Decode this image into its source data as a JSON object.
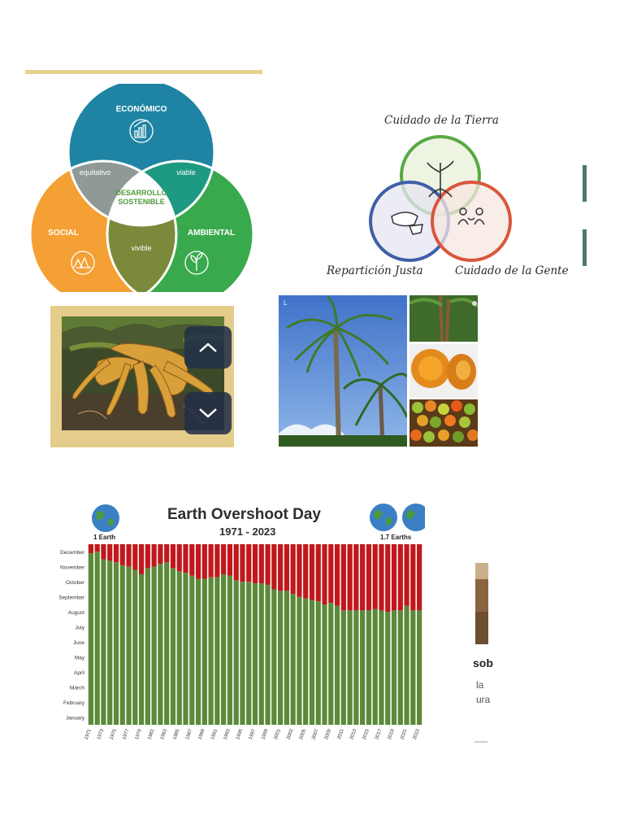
{
  "venn_sustainable": {
    "economico": "ECONÓMICO",
    "social": "SOCIAL",
    "ambiental": "AMBIENTAL",
    "equitativo": "equitativo",
    "viable": "viable",
    "vivible": "vivible",
    "center_line1": "DESARROLLO",
    "center_line2": "SOSTENIBLE",
    "colors": {
      "economic": "#1f84a3",
      "social": "#f5a034",
      "environment": "#39a94d"
    }
  },
  "venn_permaculture": {
    "top": "Cuidado de la Tierra",
    "left": "Repartición Justa",
    "right": "Cuidado de la Gente"
  },
  "gallery": {
    "up_icon": "chevron-up-icon",
    "down_icon": "chevron-down-icon",
    "palm_corner": "L"
  },
  "chart": {
    "left_globe_label": "1 Earth",
    "right_globe_label": "1.7 Earths"
  },
  "chart_data": {
    "type": "bar",
    "title": "Earth Overshoot Day",
    "subtitle": "1971 - 2023",
    "y_ticks": [
      "January",
      "February",
      "March",
      "April",
      "May",
      "June",
      "July",
      "August",
      "September",
      "October",
      "November",
      "December"
    ],
    "x_tick_labels": [
      "1971",
      "1973",
      "1975",
      "1977",
      "1979",
      "1981",
      "1983",
      "1985",
      "1987",
      "1989",
      "1991",
      "1993",
      "1995",
      "1997",
      "1999",
      "2001",
      "2003",
      "2005",
      "2007",
      "2009",
      "2011",
      "2013",
      "2015",
      "2017",
      "2019",
      "2021",
      "2023"
    ],
    "x": [
      1971,
      1972,
      1973,
      1974,
      1975,
      1976,
      1977,
      1978,
      1979,
      1980,
      1981,
      1982,
      1983,
      1984,
      1985,
      1986,
      1987,
      1988,
      1989,
      1990,
      1991,
      1992,
      1993,
      1994,
      1995,
      1996,
      1997,
      1998,
      1999,
      2000,
      2001,
      2002,
      2003,
      2004,
      2005,
      2006,
      2007,
      2008,
      2009,
      2010,
      2011,
      2012,
      2013,
      2014,
      2015,
      2016,
      2017,
      2018,
      2019,
      2020,
      2021,
      2022,
      2023
    ],
    "values_month": [
      12.4,
      12.5,
      12.0,
      11.9,
      11.8,
      11.6,
      11.5,
      11.3,
      11.0,
      11.4,
      11.5,
      11.7,
      11.8,
      11.4,
      11.2,
      11.1,
      10.9,
      10.7,
      10.7,
      10.8,
      10.8,
      11.0,
      10.9,
      10.6,
      10.5,
      10.5,
      10.4,
      10.4,
      10.3,
      10.0,
      9.9,
      9.9,
      9.7,
      9.5,
      9.4,
      9.3,
      9.2,
      9.0,
      9.1,
      8.9,
      8.6,
      8.6,
      8.6,
      8.6,
      8.6,
      8.7,
      8.6,
      8.5,
      8.6,
      8.6,
      8.9,
      8.6,
      8.6
    ],
    "value_unit": "month position (1 = start of January, 13 = end of December)",
    "series": [
      {
        "name": "green",
        "color": "#5b8a3a"
      },
      {
        "name": "red",
        "color": "#c0181c"
      }
    ],
    "ylim": [
      1,
      13
    ]
  },
  "side_card": {
    "title": "sob",
    "line1": "la",
    "line2": "ura"
  }
}
